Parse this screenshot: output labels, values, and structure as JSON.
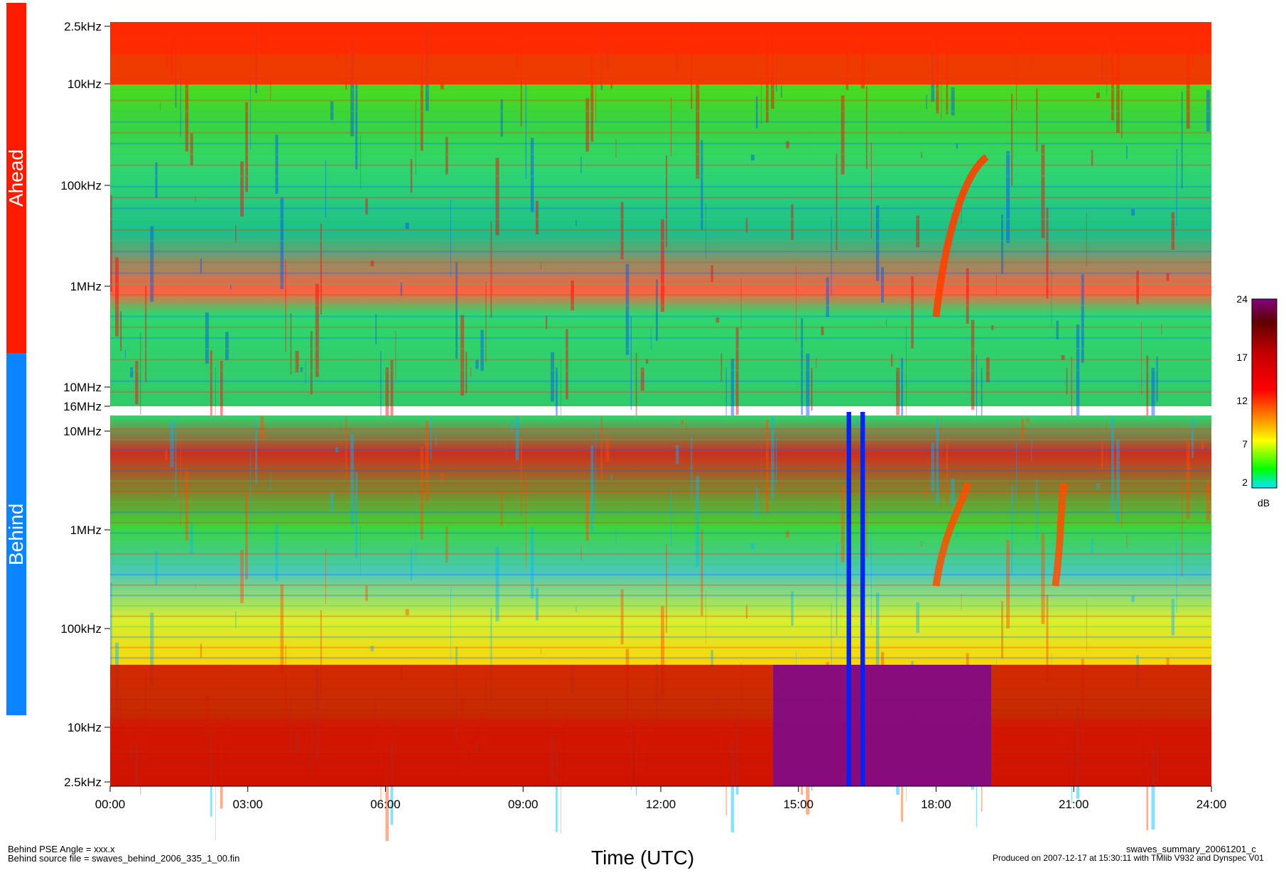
{
  "chart_data": {
    "type": "heatmap",
    "title": "",
    "xlabel": "Time (UTC)",
    "x_ticks": [
      "00:00",
      "03:00",
      "06:00",
      "09:00",
      "12:00",
      "15:00",
      "18:00",
      "21:00",
      "24:00"
    ],
    "xlim": [
      "00:00",
      "24:00"
    ],
    "panels": [
      {
        "name": "Ahead",
        "color": "#ff1a00",
        "frequency_ticks": [
          "2.5kHz",
          "10kHz",
          "100kHz",
          "1MHz",
          "10MHz",
          "16MHz"
        ],
        "frequency_scale": "log",
        "features": [
          {
            "label": "Type III burst",
            "start_hour": 18.0,
            "peak_hour": 19.0,
            "low_freq": "100kHz",
            "high_freq": "1MHz"
          }
        ]
      },
      {
        "name": "Behind",
        "color": "#0a84ff",
        "frequency_ticks": [
          "16MHz",
          "10MHz",
          "1MHz",
          "100kHz",
          "10kHz",
          "2.5kHz"
        ],
        "frequency_scale": "log",
        "features": [
          {
            "label": "Data gap",
            "start_hour": 16.05,
            "end_hour": 16.15
          },
          {
            "label": "Data gap",
            "start_hour": 16.35,
            "end_hour": 16.45
          },
          {
            "label": "Type III burst",
            "start_hour": 18.0,
            "peak_hour": 18.7,
            "low_freq": "100kHz",
            "high_freq": "1MHz"
          },
          {
            "label": "Type III burst",
            "start_hour": 20.6,
            "peak_hour": 20.8,
            "low_freq": "100kHz",
            "high_freq": "1MHz"
          }
        ]
      }
    ],
    "colorbar": {
      "label": "dB",
      "ticks": [
        24,
        17,
        12,
        7,
        2
      ],
      "range": [
        2,
        24
      ],
      "colors": [
        "#00e5ff",
        "#00ff00",
        "#ffff00",
        "#ff8000",
        "#ff0000",
        "#8b0000",
        "#800080"
      ]
    },
    "grid": false
  },
  "footer": {
    "left_line1": "Behind PSE Angle = xxx.x",
    "left_line2": "Behind source file = swaves_behind_2006_335_1_00.fin",
    "center": "Time (UTC)",
    "right_line1": "swaves_summary_20061201_c",
    "right_line2": "Produced on 2007-12-17 at 15:30:11 with TMlib V932 and Dynspec V01"
  }
}
